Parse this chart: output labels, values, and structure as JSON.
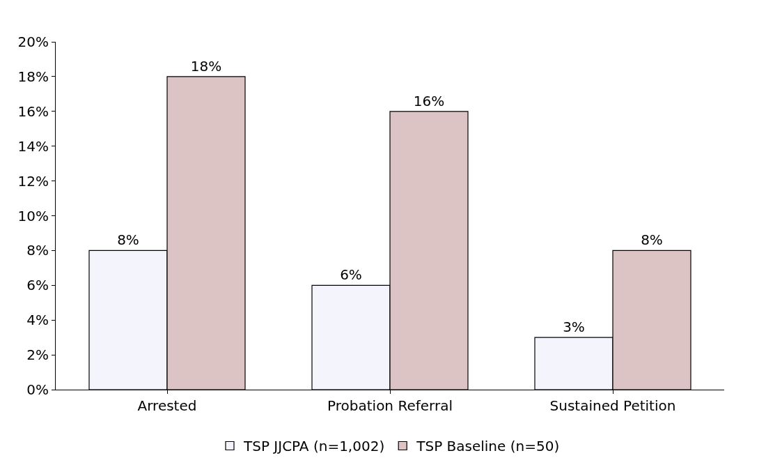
{
  "chart_data": {
    "type": "bar",
    "categories": [
      "Arrested",
      "Probation Referral",
      "Sustained Petition"
    ],
    "series": [
      {
        "name": "TSP JJCPA (n=1,002)",
        "color": "#f4f4fc",
        "values": [
          8,
          6,
          3
        ],
        "value_labels": [
          "8%",
          "6%",
          "3%"
        ]
      },
      {
        "name": "TSP Baseline (n=50)",
        "color": "#dcc4c4",
        "values": [
          18,
          16,
          8
        ],
        "value_labels": [
          "18%",
          "16%",
          "8%"
        ]
      }
    ],
    "ylim": [
      0,
      20
    ],
    "yticks": [
      {
        "value": 0,
        "label": "0%"
      },
      {
        "value": 2,
        "label": "2%"
      },
      {
        "value": 4,
        "label": "4%"
      },
      {
        "value": 6,
        "label": "6%"
      },
      {
        "value": 8,
        "label": "8%"
      },
      {
        "value": 10,
        "label": "10%"
      },
      {
        "value": 12,
        "label": "12%"
      },
      {
        "value": 14,
        "label": "14%"
      },
      {
        "value": 16,
        "label": "16%"
      },
      {
        "value": 18,
        "label": "18%"
      },
      {
        "value": 20,
        "label": "20%"
      }
    ],
    "grid": false,
    "legend": "bottom"
  }
}
